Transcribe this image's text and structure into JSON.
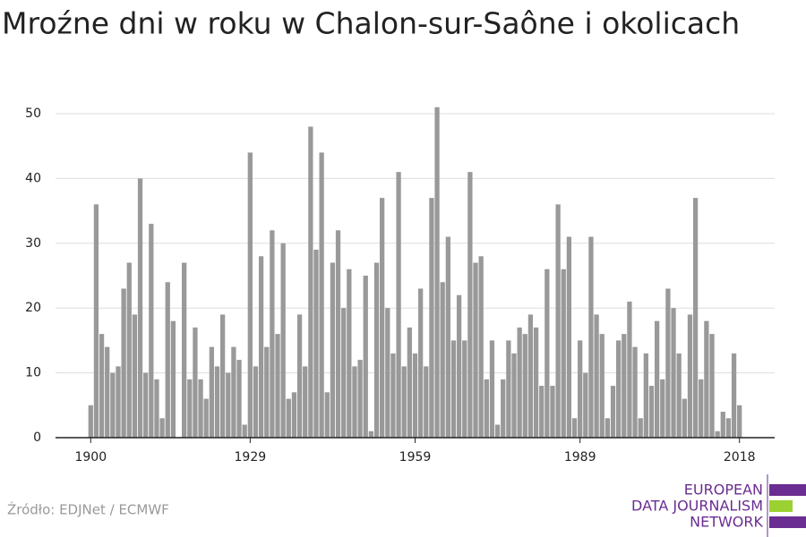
{
  "chart_data": {
    "type": "bar",
    "title": "Mroźne dni w roku w Chalon-sur-Saône i okolicach",
    "x": [
      1900,
      1901,
      1902,
      1903,
      1904,
      1905,
      1906,
      1907,
      1908,
      1909,
      1910,
      1911,
      1912,
      1913,
      1914,
      1915,
      1916,
      1917,
      1918,
      1919,
      1920,
      1921,
      1922,
      1923,
      1924,
      1925,
      1926,
      1927,
      1928,
      1929,
      1930,
      1931,
      1932,
      1933,
      1934,
      1935,
      1936,
      1937,
      1938,
      1939,
      1940,
      1941,
      1942,
      1943,
      1944,
      1945,
      1946,
      1947,
      1948,
      1949,
      1950,
      1951,
      1952,
      1953,
      1954,
      1955,
      1956,
      1957,
      1958,
      1959,
      1960,
      1961,
      1962,
      1963,
      1964,
      1965,
      1966,
      1967,
      1968,
      1969,
      1970,
      1971,
      1972,
      1973,
      1974,
      1975,
      1976,
      1977,
      1978,
      1979,
      1980,
      1981,
      1982,
      1983,
      1984,
      1985,
      1986,
      1987,
      1988,
      1989,
      1990,
      1991,
      1992,
      1993,
      1994,
      1995,
      1996,
      1997,
      1998,
      1999,
      2000,
      2001,
      2002,
      2003,
      2004,
      2005,
      2006,
      2007,
      2008,
      2009,
      2010,
      2011,
      2012,
      2013,
      2014,
      2015,
      2016,
      2017,
      2018
    ],
    "values": [
      5,
      36,
      16,
      14,
      10,
      11,
      23,
      27,
      19,
      40,
      10,
      33,
      9,
      3,
      24,
      18,
      0,
      27,
      9,
      17,
      9,
      6,
      14,
      11,
      19,
      10,
      14,
      12,
      2,
      44,
      11,
      28,
      14,
      32,
      16,
      30,
      6,
      7,
      19,
      11,
      48,
      29,
      44,
      7,
      27,
      32,
      20,
      26,
      11,
      12,
      25,
      1,
      27,
      37,
      20,
      13,
      41,
      11,
      17,
      13,
      23,
      11,
      37,
      51,
      24,
      31,
      15,
      22,
      15,
      41,
      27,
      28,
      9,
      15,
      2,
      9,
      15,
      13,
      17,
      16,
      19,
      17,
      8,
      26,
      8,
      36,
      26,
      31,
      3,
      15,
      10,
      31,
      19,
      16,
      3,
      8,
      15,
      16,
      21,
      14,
      3,
      13,
      8,
      18,
      9,
      23,
      20,
      13,
      6,
      19,
      37,
      9,
      18,
      16,
      1,
      4,
      3,
      13,
      5
    ],
    "color": "#999999",
    "xlim": [
      1893.6,
      2024.4
    ],
    "xticks": [
      1900,
      1929,
      1959,
      1989,
      2018
    ],
    "ylim": [
      0,
      50
    ],
    "yticks": [
      0,
      10,
      20,
      30,
      40,
      50
    ],
    "grid": true
  },
  "footer": {
    "source": "Źródło: EDJNet / ECMWF",
    "logo": [
      "EUROPEAN",
      "DATA JOURNALISM",
      "NETWORK"
    ]
  }
}
